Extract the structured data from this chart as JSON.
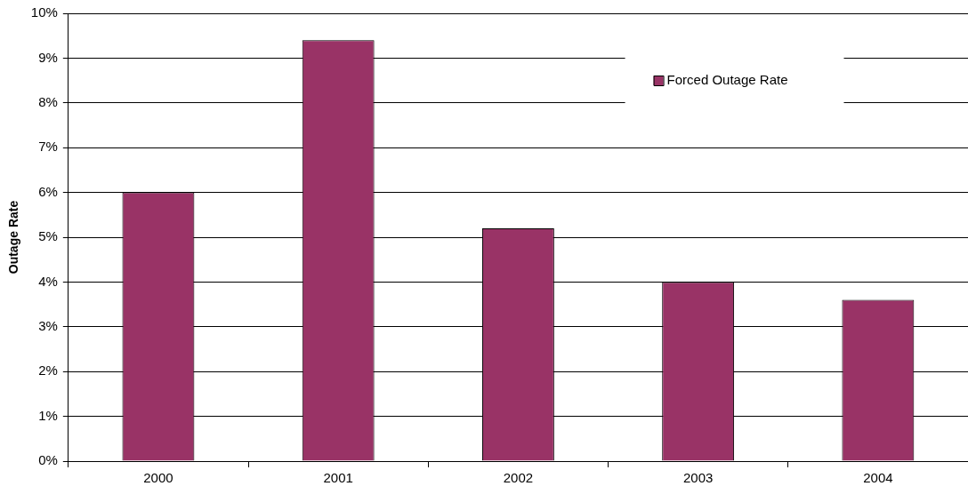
{
  "chart_data": {
    "type": "bar",
    "ylabel": "Outage Rate",
    "categories": [
      "2000",
      "2001",
      "2002",
      "2003",
      "2004"
    ],
    "series": [
      {
        "name": "Forced Outage Rate",
        "color": "#993366",
        "values": [
          6.0,
          9.4,
          5.2,
          4.0,
          3.6
        ]
      }
    ],
    "ylim": [
      0,
      10
    ],
    "yticks": [
      {
        "value": 0,
        "label": "0%"
      },
      {
        "value": 1,
        "label": "1%"
      },
      {
        "value": 2,
        "label": "2%"
      },
      {
        "value": 3,
        "label": "3%"
      },
      {
        "value": 4,
        "label": "4%"
      },
      {
        "value": 5,
        "label": "5%"
      },
      {
        "value": 6,
        "label": "6%"
      },
      {
        "value": 7,
        "label": "7%"
      },
      {
        "value": 8,
        "label": "8%"
      },
      {
        "value": 9,
        "label": "9%"
      },
      {
        "value": 10,
        "label": "10%"
      }
    ],
    "grid": "y",
    "legend": "top right"
  }
}
